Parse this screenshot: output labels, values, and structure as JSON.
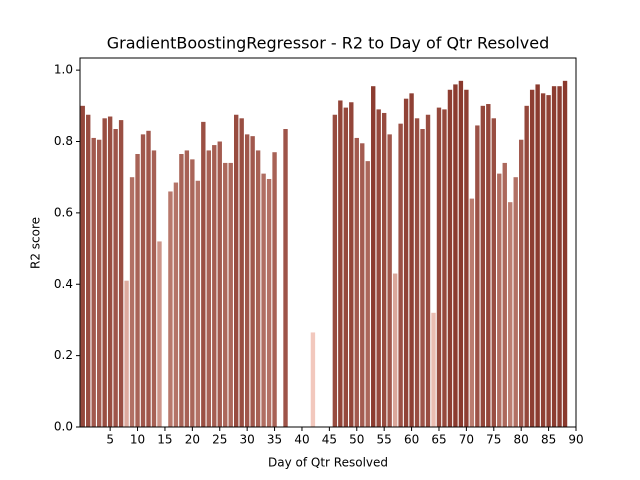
{
  "chart_data": {
    "type": "bar",
    "title": "GradientBoostingRegressor - R2 to Day of Qtr Resolved",
    "xlabel": "Day of Qtr Resolved",
    "ylabel": "R2 score",
    "x": [
      0,
      1,
      2,
      3,
      4,
      5,
      6,
      7,
      8,
      9,
      10,
      11,
      12,
      13,
      14,
      15,
      16,
      17,
      18,
      19,
      20,
      21,
      22,
      23,
      24,
      25,
      26,
      27,
      28,
      29,
      30,
      31,
      32,
      33,
      34,
      35,
      36,
      37,
      38,
      39,
      40,
      41,
      42,
      43,
      44,
      45,
      46,
      47,
      48,
      49,
      50,
      51,
      52,
      53,
      54,
      55,
      56,
      57,
      58,
      59,
      60,
      61,
      62,
      63,
      64,
      65,
      66,
      67,
      68,
      69,
      70,
      71,
      72,
      73,
      74,
      75,
      76,
      77,
      78,
      79,
      80,
      81,
      82,
      83,
      84,
      85,
      86,
      87,
      88
    ],
    "values": [
      0.9,
      0.875,
      0.81,
      0.805,
      0.865,
      0.87,
      0.835,
      0.86,
      0.41,
      0.7,
      0.765,
      0.82,
      0.83,
      0.775,
      0.52,
      null,
      0.66,
      0.685,
      0.765,
      0.775,
      0.75,
      0.69,
      0.855,
      0.775,
      0.79,
      0.8,
      0.74,
      0.74,
      0.875,
      0.865,
      0.82,
      0.815,
      0.775,
      0.71,
      0.695,
      0.77,
      null,
      0.835,
      null,
      null,
      null,
      null,
      0.265,
      null,
      null,
      null,
      0.875,
      0.915,
      0.895,
      0.91,
      0.81,
      0.795,
      0.745,
      0.955,
      0.89,
      0.88,
      0.82,
      0.43,
      0.85,
      0.92,
      0.935,
      0.865,
      0.835,
      0.875,
      0.32,
      0.895,
      0.89,
      0.945,
      0.96,
      0.97,
      0.945,
      0.64,
      0.845,
      0.9,
      0.905,
      0.865,
      0.71,
      0.74,
      0.63,
      0.7,
      0.805,
      0.9,
      0.945,
      0.96,
      0.935,
      0.93,
      0.955,
      0.955,
      0.97
    ],
    "palette": [
      "#f2c8bd",
      "#8a392d"
    ],
    "xlim": [
      -0.5,
      90
    ],
    "xticks": [
      5,
      10,
      15,
      20,
      25,
      30,
      35,
      40,
      45,
      50,
      55,
      60,
      65,
      70,
      75,
      80,
      85,
      90
    ],
    "ylim": [
      0,
      1.034
    ],
    "yticks": [
      {
        "value": 0,
        "label": "0.0"
      },
      {
        "value": 0.2,
        "label": "0.2"
      },
      {
        "value": 0.4,
        "label": "0.4"
      },
      {
        "value": 0.6,
        "label": "0.6"
      },
      {
        "value": 0.8,
        "label": "0.8"
      },
      {
        "value": 1.0,
        "label": "1.0"
      }
    ]
  }
}
